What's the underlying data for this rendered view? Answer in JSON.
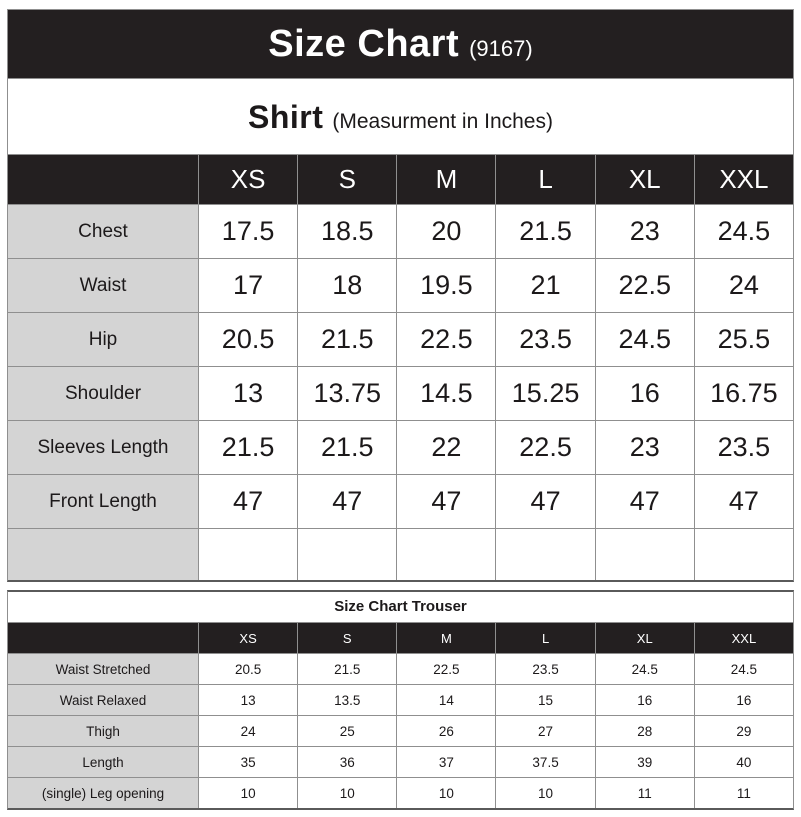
{
  "header": {
    "title": "Size Chart",
    "code": "(9167)"
  },
  "shirt": {
    "title": "Shirt",
    "subtitle": "(Measurment in Inches)",
    "sizes": [
      "XS",
      "S",
      "M",
      "L",
      "XL",
      "XXL"
    ],
    "rows": [
      {
        "label": "Chest",
        "values": [
          "17.5",
          "18.5",
          "20",
          "21.5",
          "23",
          "24.5"
        ]
      },
      {
        "label": "Waist",
        "values": [
          "17",
          "18",
          "19.5",
          "21",
          "22.5",
          "24"
        ]
      },
      {
        "label": "Hip",
        "values": [
          "20.5",
          "21.5",
          "22.5",
          "23.5",
          "24.5",
          "25.5"
        ]
      },
      {
        "label": "Shoulder",
        "values": [
          "13",
          "13.75",
          "14.5",
          "15.25",
          "16",
          "16.75"
        ]
      },
      {
        "label": "Sleeves Length",
        "values": [
          "21.5",
          "21.5",
          "22",
          "22.5",
          "23",
          "23.5"
        ]
      },
      {
        "label": "Front Length",
        "values": [
          "47",
          "47",
          "47",
          "47",
          "47",
          "47"
        ]
      },
      {
        "label": "",
        "values": [
          "",
          "",
          "",
          "",
          "",
          ""
        ]
      }
    ]
  },
  "trouser": {
    "title": "Size Chart Trouser",
    "sizes": [
      "XS",
      "S",
      "M",
      "L",
      "XL",
      "XXL"
    ],
    "rows": [
      {
        "label": "Waist Stretched",
        "values": [
          "20.5",
          "21.5",
          "22.5",
          "23.5",
          "24.5",
          "24.5"
        ]
      },
      {
        "label": "Waist Relaxed",
        "values": [
          "13",
          "13.5",
          "14",
          "15",
          "16",
          "16"
        ]
      },
      {
        "label": "Thigh",
        "values": [
          "24",
          "25",
          "26",
          "27",
          "28",
          "29"
        ]
      },
      {
        "label": "Length",
        "values": [
          "35",
          "36",
          "37",
          "37.5",
          "39",
          "40"
        ]
      },
      {
        "label": "(single) Leg opening",
        "values": [
          "10",
          "10",
          "10",
          "10",
          "11",
          "11"
        ]
      }
    ]
  },
  "colors": {
    "header_bg": "#231f20",
    "header_text": "#ffffff",
    "label_bg": "#d4d4d4",
    "border": "#8f8f8f",
    "text": "#1c191a"
  }
}
